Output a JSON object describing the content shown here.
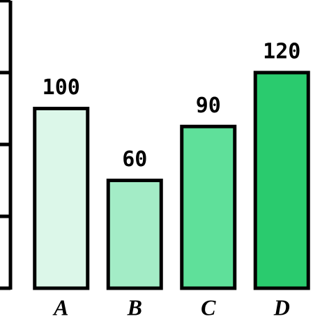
{
  "chart_data": {
    "type": "bar",
    "categories": [
      "A",
      "B",
      "C",
      "D"
    ],
    "values": [
      100,
      60,
      90,
      120
    ],
    "colors": [
      "#dcf7e9",
      "#a3ecc6",
      "#5fe09a",
      "#2acb6e"
    ],
    "ylim": [
      0,
      160
    ],
    "yticks": [
      0,
      40,
      80,
      120,
      160
    ]
  }
}
